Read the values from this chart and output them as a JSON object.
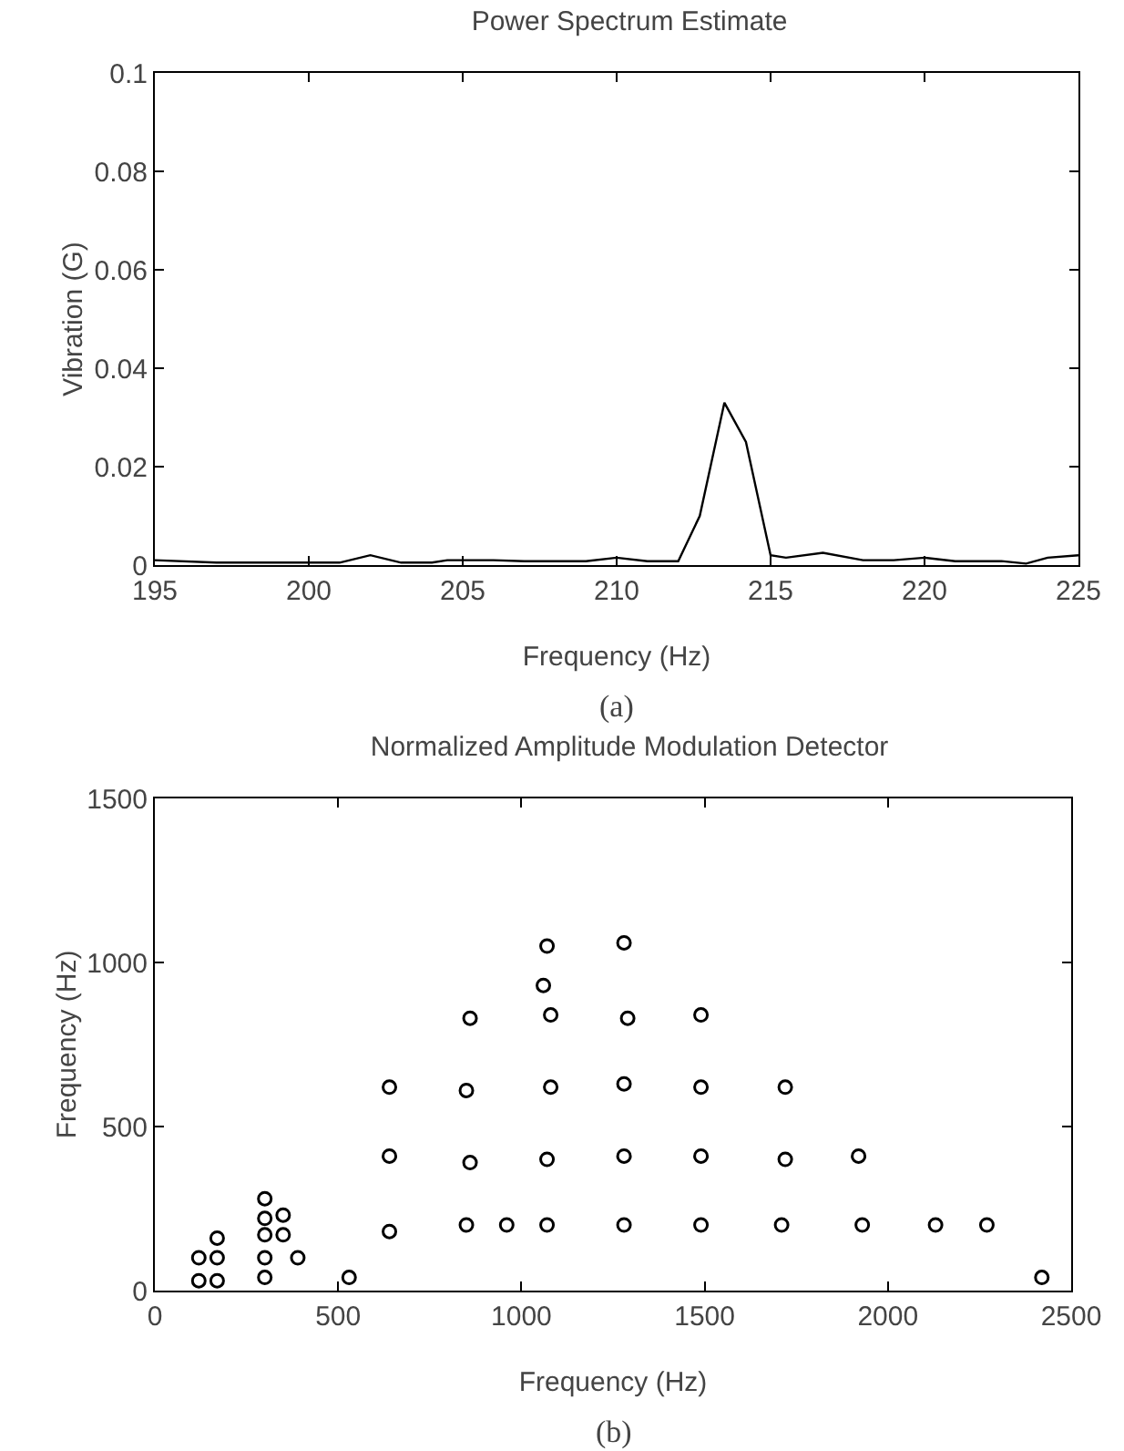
{
  "chart_data": [
    {
      "type": "line",
      "title": "Power Spectrum Estimate",
      "xlabel": "Frequency (Hz)",
      "ylabel": "Vibration (G)",
      "annotations": [
        "(a)"
      ],
      "color": "#000000",
      "marker": "none",
      "grid": false,
      "x": [
        195,
        197,
        201,
        202,
        203,
        204,
        204.5,
        206,
        207,
        209,
        210,
        211,
        212,
        212.7,
        213.5,
        214.2,
        215,
        215.5,
        216.7,
        218,
        219,
        220,
        221,
        222.5,
        223.3,
        224,
        225
      ],
      "values": [
        0.001,
        0.0005,
        0.0005,
        0.002,
        0.0005,
        0.0005,
        0.001,
        0.001,
        0.0008,
        0.0008,
        0.0015,
        0.0008,
        0.0008,
        0.01,
        0.033,
        0.025,
        0.002,
        0.0015,
        0.0025,
        0.001,
        0.001,
        0.0015,
        0.0008,
        0.0008,
        0.0003,
        0.0015,
        0.002
      ],
      "xlim": [
        195,
        225
      ],
      "xticks": [
        195,
        200,
        205,
        210,
        215,
        220,
        225
      ],
      "ylim": [
        0,
        0.1
      ],
      "yticks": [
        0,
        0.02,
        0.04,
        0.06,
        0.08,
        0.1
      ]
    },
    {
      "type": "scatter",
      "title": "Normalized Amplitude Modulation Detector",
      "xlabel": "Frequency (Hz)",
      "ylabel": "Frequency (Hz)",
      "annotations": [
        "(b)"
      ],
      "color": "#000000",
      "marker": "circle",
      "grid": false,
      "x": [
        120,
        170,
        120,
        170,
        170,
        300,
        300,
        300,
        300,
        300,
        350,
        350,
        390,
        530,
        640,
        640,
        640,
        850,
        860,
        850,
        860,
        960,
        1070,
        1070,
        1080,
        1080,
        1060,
        1070,
        1280,
        1290,
        1280,
        1280,
        1280,
        1490,
        1490,
        1490,
        1490,
        1720,
        1720,
        1710,
        1920,
        1930,
        2130,
        2270,
        2420
      ],
      "values": [
        30,
        30,
        100,
        100,
        160,
        40,
        100,
        170,
        220,
        280,
        170,
        230,
        100,
        40,
        180,
        410,
        620,
        200,
        390,
        610,
        830,
        200,
        200,
        400,
        620,
        840,
        930,
        1050,
        1060,
        830,
        630,
        410,
        200,
        840,
        620,
        410,
        200,
        620,
        400,
        200,
        410,
        200,
        200,
        200,
        40
      ],
      "xlim": [
        0,
        2500
      ],
      "xticks": [
        0,
        500,
        1000,
        1500,
        2000,
        2500
      ],
      "ylim": [
        0,
        1500
      ],
      "yticks": [
        0,
        500,
        1000,
        1500
      ]
    }
  ]
}
